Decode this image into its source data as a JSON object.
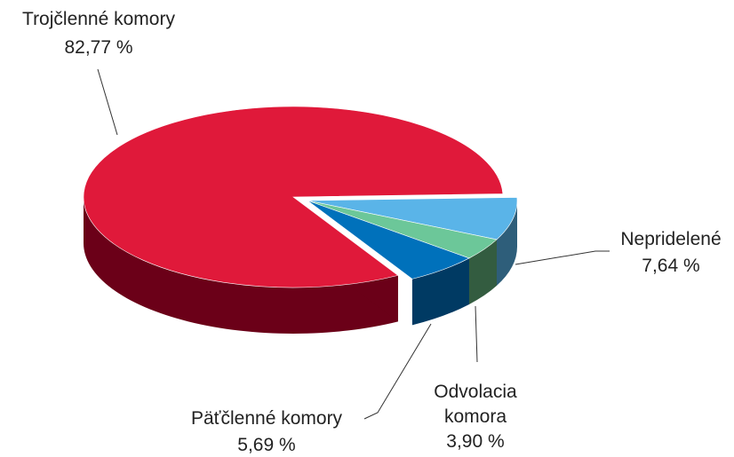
{
  "chart_data": {
    "type": "pie",
    "categories": [
      "Nepridelené",
      "Odvolacia komora",
      "Päťčlenné komory",
      "Trojčlenné komory"
    ],
    "values": [
      7.64,
      3.9,
      5.69,
      82.77
    ],
    "value_labels": [
      "7,64 %",
      "3,90 %",
      "5,69 %",
      "82,77 %"
    ],
    "colors": [
      "#5ab4e8",
      "#6cc799",
      "#0071bb",
      "#e0193a"
    ],
    "side_colors": [
      "#2e5e7a",
      "#335c40",
      "#003a63",
      "#6b0018"
    ]
  }
}
